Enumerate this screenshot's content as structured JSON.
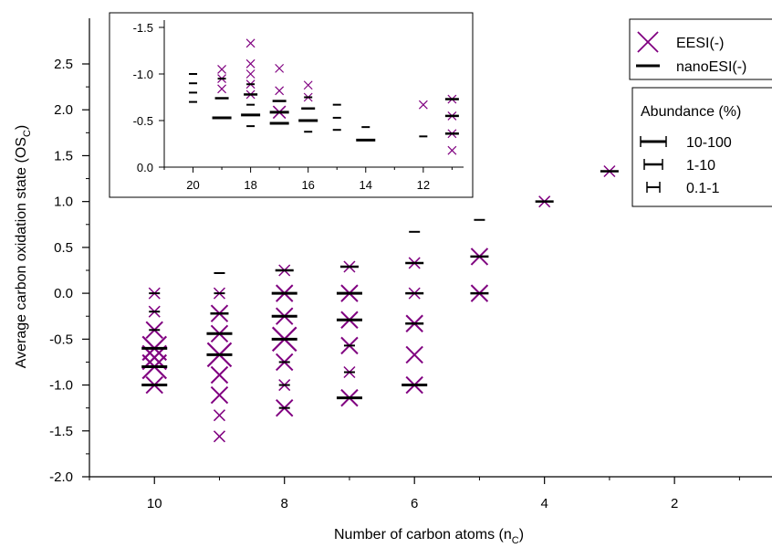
{
  "chart_data": {
    "type": "scatter",
    "xlabel": "Number of carbon atoms (n",
    "xlabel_sub": "C",
    "xlabel_end": ")",
    "ylabel": "Average carbon oxidation state (OS",
    "ylabel_sub": "C",
    "ylabel_end": ")",
    "x_reversed": true,
    "xlim": [
      11,
      0.5
    ],
    "ylim": [
      -2.0,
      2.5
    ],
    "x_ticks": [
      10,
      8,
      6,
      4,
      2
    ],
    "y_ticks": [
      -2.0,
      -1.5,
      -1.0,
      -0.5,
      0.0,
      0.5,
      1.0,
      1.5,
      2.0,
      2.5
    ],
    "series": [
      {
        "name": "EESI(-)",
        "marker": "x",
        "color": "#800080",
        "points": [
          {
            "x": 10,
            "y": 0.0,
            "a": "s"
          },
          {
            "x": 10,
            "y": -0.2,
            "a": "s"
          },
          {
            "x": 10,
            "y": -0.4,
            "a": "m"
          },
          {
            "x": 10,
            "y": -0.6,
            "a": "l"
          },
          {
            "x": 10,
            "y": -0.7,
            "a": "l"
          },
          {
            "x": 10,
            "y": -0.8,
            "a": "l"
          },
          {
            "x": 10,
            "y": -1.0,
            "a": "m"
          },
          {
            "x": 9,
            "y": 0.0,
            "a": "s"
          },
          {
            "x": 9,
            "y": -0.22,
            "a": "m"
          },
          {
            "x": 9,
            "y": -0.44,
            "a": "m"
          },
          {
            "x": 9,
            "y": -0.67,
            "a": "l"
          },
          {
            "x": 9,
            "y": -0.89,
            "a": "m"
          },
          {
            "x": 9,
            "y": -1.11,
            "a": "m"
          },
          {
            "x": 9,
            "y": -1.33,
            "a": "s"
          },
          {
            "x": 9,
            "y": -1.56,
            "a": "s"
          },
          {
            "x": 8,
            "y": 0.25,
            "a": "s"
          },
          {
            "x": 8,
            "y": 0.0,
            "a": "m"
          },
          {
            "x": 8,
            "y": -0.25,
            "a": "m"
          },
          {
            "x": 8,
            "y": -0.5,
            "a": "l"
          },
          {
            "x": 8,
            "y": -0.75,
            "a": "m"
          },
          {
            "x": 8,
            "y": -1.0,
            "a": "s"
          },
          {
            "x": 8,
            "y": -1.25,
            "a": "m"
          },
          {
            "x": 7,
            "y": 0.29,
            "a": "s"
          },
          {
            "x": 7,
            "y": 0.0,
            "a": "m"
          },
          {
            "x": 7,
            "y": -0.29,
            "a": "m"
          },
          {
            "x": 7,
            "y": -0.57,
            "a": "m"
          },
          {
            "x": 7,
            "y": -0.86,
            "a": "s"
          },
          {
            "x": 7,
            "y": -1.14,
            "a": "m"
          },
          {
            "x": 6,
            "y": 0.33,
            "a": "s"
          },
          {
            "x": 6,
            "y": 0.0,
            "a": "s"
          },
          {
            "x": 6,
            "y": -0.33,
            "a": "m"
          },
          {
            "x": 6,
            "y": -0.67,
            "a": "m"
          },
          {
            "x": 6,
            "y": -1.0,
            "a": "m"
          },
          {
            "x": 5,
            "y": 0.4,
            "a": "m"
          },
          {
            "x": 5,
            "y": 0.0,
            "a": "m"
          },
          {
            "x": 4,
            "y": 1.0,
            "a": "s"
          },
          {
            "x": 3,
            "y": 1.33,
            "a": "s"
          }
        ]
      },
      {
        "name": "nanoESI(-)",
        "marker": "hline",
        "color": "#000000",
        "points": [
          {
            "x": 10,
            "y": 0.0,
            "a": "s"
          },
          {
            "x": 10,
            "y": -0.2,
            "a": "s"
          },
          {
            "x": 10,
            "y": -0.4,
            "a": "s"
          },
          {
            "x": 10,
            "y": -0.6,
            "a": "l"
          },
          {
            "x": 10,
            "y": -0.8,
            "a": "l"
          },
          {
            "x": 10,
            "y": -1.0,
            "a": "l"
          },
          {
            "x": 9,
            "y": 0.22,
            "a": "s"
          },
          {
            "x": 9,
            "y": 0.0,
            "a": "s"
          },
          {
            "x": 9,
            "y": -0.22,
            "a": "m"
          },
          {
            "x": 9,
            "y": -0.44,
            "a": "l"
          },
          {
            "x": 9,
            "y": -0.67,
            "a": "l"
          },
          {
            "x": 8,
            "y": 0.25,
            "a": "m"
          },
          {
            "x": 8,
            "y": 0.0,
            "a": "l"
          },
          {
            "x": 8,
            "y": -0.25,
            "a": "l"
          },
          {
            "x": 8,
            "y": -0.5,
            "a": "l"
          },
          {
            "x": 8,
            "y": -0.75,
            "a": "s"
          },
          {
            "x": 8,
            "y": -1.0,
            "a": "s"
          },
          {
            "x": 8,
            "y": -1.25,
            "a": "s"
          },
          {
            "x": 7,
            "y": 0.29,
            "a": "m"
          },
          {
            "x": 7,
            "y": 0.0,
            "a": "l"
          },
          {
            "x": 7,
            "y": -0.29,
            "a": "l"
          },
          {
            "x": 7,
            "y": -0.57,
            "a": "s"
          },
          {
            "x": 7,
            "y": -0.86,
            "a": "s"
          },
          {
            "x": 7,
            "y": -1.14,
            "a": "l"
          },
          {
            "x": 6,
            "y": 0.67,
            "a": "s"
          },
          {
            "x": 6,
            "y": 0.33,
            "a": "m"
          },
          {
            "x": 6,
            "y": 0.0,
            "a": "m"
          },
          {
            "x": 6,
            "y": -0.33,
            "a": "m"
          },
          {
            "x": 6,
            "y": -1.0,
            "a": "l"
          },
          {
            "x": 5,
            "y": 0.8,
            "a": "s"
          },
          {
            "x": 5,
            "y": 0.4,
            "a": "m"
          },
          {
            "x": 5,
            "y": 0.0,
            "a": "m"
          },
          {
            "x": 4,
            "y": 1.0,
            "a": "m"
          },
          {
            "x": 3,
            "y": 1.33,
            "a": "m"
          }
        ]
      }
    ],
    "inset": {
      "x_reversed": true,
      "y_reversed": true,
      "xlim": [
        21,
        10.6
      ],
      "ylim": [
        0.0,
        -1.5
      ],
      "x_ticks": [
        20,
        18,
        16,
        14,
        12
      ],
      "y_ticks": [
        0.0,
        -0.5,
        -1.0,
        -1.5
      ],
      "x_tick_labels": [
        "20",
        "18",
        "16",
        "14",
        "12"
      ],
      "y_tick_labels": [
        "0.0",
        "-0.5",
        "-1.0",
        "-1.5"
      ],
      "series": [
        {
          "name": "EESI(-)",
          "points": [
            {
              "x": 19,
              "y": -1.05,
              "a": "s"
            },
            {
              "x": 19,
              "y": -0.95,
              "a": "s"
            },
            {
              "x": 19,
              "y": -0.84,
              "a": "s"
            },
            {
              "x": 18,
              "y": -1.33,
              "a": "s"
            },
            {
              "x": 18,
              "y": -1.11,
              "a": "s"
            },
            {
              "x": 18,
              "y": -1.0,
              "a": "s"
            },
            {
              "x": 18,
              "y": -0.89,
              "a": "s"
            },
            {
              "x": 18,
              "y": -0.78,
              "a": "s"
            },
            {
              "x": 17,
              "y": -1.06,
              "a": "s"
            },
            {
              "x": 17,
              "y": -0.82,
              "a": "s"
            },
            {
              "x": 17,
              "y": -0.59,
              "a": "m"
            },
            {
              "x": 16,
              "y": -0.88,
              "a": "s"
            },
            {
              "x": 16,
              "y": -0.75,
              "a": "s"
            },
            {
              "x": 12,
              "y": -0.67,
              "a": "s"
            },
            {
              "x": 11,
              "y": -0.73,
              "a": "s"
            },
            {
              "x": 11,
              "y": -0.55,
              "a": "s"
            },
            {
              "x": 11,
              "y": -0.36,
              "a": "s"
            },
            {
              "x": 11,
              "y": -0.18,
              "a": "s"
            }
          ]
        },
        {
          "name": "nanoESI(-)",
          "points": [
            {
              "x": 20,
              "y": -1.0,
              "a": "s"
            },
            {
              "x": 20,
              "y": -0.9,
              "a": "s"
            },
            {
              "x": 20,
              "y": -0.8,
              "a": "s"
            },
            {
              "x": 20,
              "y": -0.7,
              "a": "s"
            },
            {
              "x": 19,
              "y": -0.95,
              "a": "s"
            },
            {
              "x": 19,
              "y": -0.74,
              "a": "m"
            },
            {
              "x": 19,
              "y": -0.53,
              "a": "l"
            },
            {
              "x": 18,
              "y": -0.89,
              "a": "s"
            },
            {
              "x": 18,
              "y": -0.78,
              "a": "m"
            },
            {
              "x": 18,
              "y": -0.67,
              "a": "s"
            },
            {
              "x": 18,
              "y": -0.56,
              "a": "l"
            },
            {
              "x": 18,
              "y": -0.44,
              "a": "s"
            },
            {
              "x": 17,
              "y": -0.71,
              "a": "m"
            },
            {
              "x": 17,
              "y": -0.59,
              "a": "l"
            },
            {
              "x": 17,
              "y": -0.47,
              "a": "l"
            },
            {
              "x": 16,
              "y": -0.75,
              "a": "s"
            },
            {
              "x": 16,
              "y": -0.63,
              "a": "m"
            },
            {
              "x": 16,
              "y": -0.5,
              "a": "l"
            },
            {
              "x": 16,
              "y": -0.38,
              "a": "s"
            },
            {
              "x": 15,
              "y": -0.67,
              "a": "s"
            },
            {
              "x": 15,
              "y": -0.53,
              "a": "s"
            },
            {
              "x": 15,
              "y": -0.4,
              "a": "s"
            },
            {
              "x": 14,
              "y": -0.43,
              "a": "s"
            },
            {
              "x": 14,
              "y": -0.29,
              "a": "l"
            },
            {
              "x": 12,
              "y": -0.33,
              "a": "s"
            },
            {
              "x": 11,
              "y": -0.73,
              "a": "m"
            },
            {
              "x": 11,
              "y": -0.55,
              "a": "m"
            },
            {
              "x": 11,
              "y": -0.36,
              "a": "m"
            }
          ]
        }
      ]
    },
    "legend": {
      "placement": "top-right",
      "entries": [
        {
          "label": "EESI(-)",
          "marker": "x",
          "color": "#800080"
        },
        {
          "label": "nanoESI(-)",
          "marker": "hline",
          "color": "#000000"
        }
      ]
    },
    "abundance_legend": {
      "title": "Abundance (%)",
      "entries": [
        {
          "label": "10-100",
          "a": "l"
        },
        {
          "label": "1-10",
          "a": "m"
        },
        {
          "label": "0.1-1",
          "a": "s"
        }
      ]
    }
  }
}
